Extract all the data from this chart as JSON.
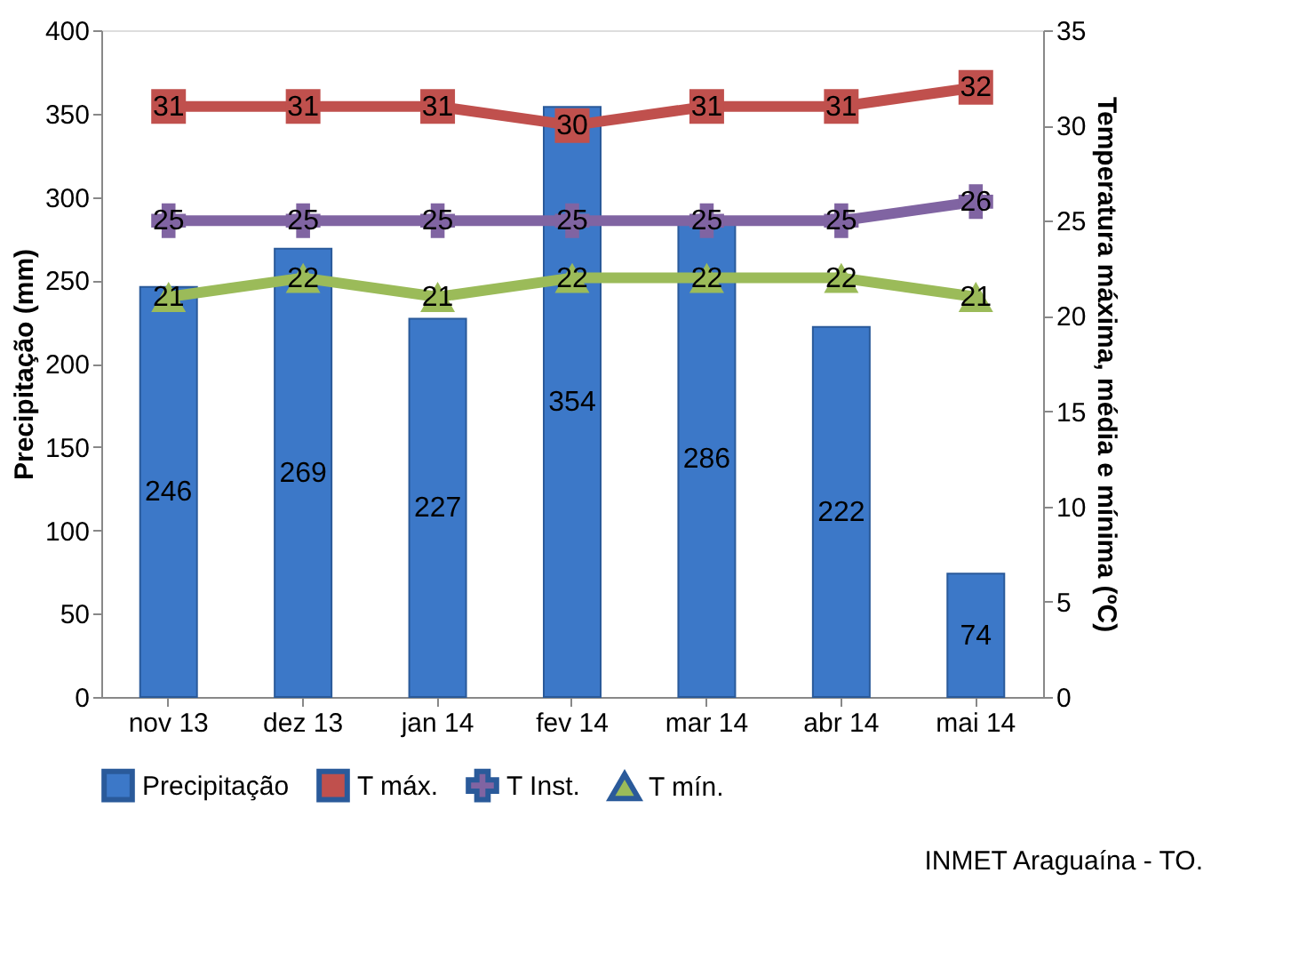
{
  "chart_data": {
    "type": "bar",
    "categories": [
      "nov 13",
      "dez 13",
      "jan 14",
      "fev 14",
      "mar 14",
      "abr 14",
      "mai 14"
    ],
    "ylabel": "Precipitação (mm)",
    "y2label": "Temperatura  máxima, média e mínima (ºC)",
    "ylim": [
      0,
      400
    ],
    "yticks": [
      0,
      50,
      100,
      150,
      200,
      250,
      300,
      350,
      400
    ],
    "y2lim": [
      0,
      35
    ],
    "y2ticks": [
      0,
      5,
      10,
      15,
      20,
      25,
      30,
      35
    ],
    "series": [
      {
        "name": "Precipitação",
        "color": "#3c78c8",
        "values": [
          246,
          269,
          227,
          354,
          286,
          222,
          74
        ]
      },
      {
        "name": "T máx.",
        "type": "line",
        "axis": "y2",
        "marker": "square",
        "color": "#c0504d",
        "values": [
          31,
          31,
          31,
          30,
          31,
          31,
          32
        ]
      },
      {
        "name": "T Inst.",
        "type": "line",
        "axis": "y2",
        "marker": "cross",
        "color": "#8064a2",
        "values": [
          25,
          25,
          25,
          25,
          25,
          25,
          26
        ]
      },
      {
        "name": "T mín.",
        "type": "line",
        "axis": "y2",
        "marker": "triangle",
        "color": "#9bbb59",
        "values": [
          21,
          22,
          21,
          22,
          22,
          22,
          21
        ]
      }
    ],
    "data_labels": true,
    "legend": "bottom",
    "grid": false,
    "annotations": [
      "INMET Araguaína - TO."
    ]
  }
}
